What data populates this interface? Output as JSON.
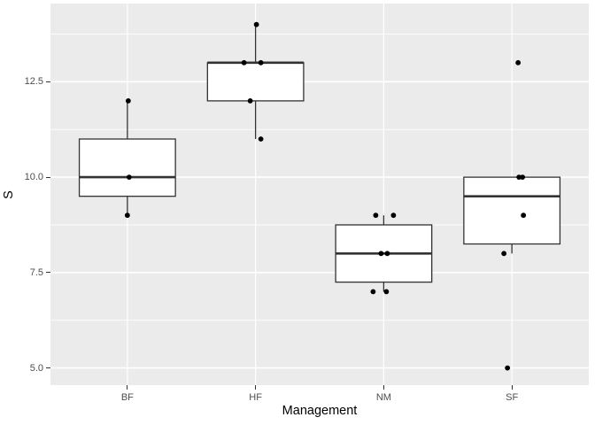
{
  "chart_data": {
    "type": "boxplot",
    "title": "",
    "xlabel": "Management",
    "ylabel": "S",
    "categories": [
      "BF",
      "HF",
      "NM",
      "SF"
    ],
    "ylim": [
      4.55,
      14.55
    ],
    "y_tick_values": [
      5.0,
      7.5,
      10.0,
      12.5
    ],
    "y_tick_labels": [
      "5.0",
      "7.5",
      "10.0",
      "12.5"
    ],
    "y_minor_gridlines": [
      6.25,
      8.75,
      11.25,
      13.75
    ],
    "grid": "major-and-minor-horizontal, major-vertical",
    "legend_position": "none",
    "groups": [
      {
        "label": "BF",
        "values": [
          9,
          10,
          12
        ],
        "q1": 9.5,
        "median": 10,
        "q3": 11,
        "whisker_low": 9,
        "whisker_high": 12,
        "outliers": [],
        "points": [
          {
            "v": 12,
            "dx": 1
          },
          {
            "v": 10,
            "dx": 2
          },
          {
            "v": 9,
            "dx": 0
          }
        ]
      },
      {
        "label": "HF",
        "values": [
          11,
          12,
          13,
          13,
          14
        ],
        "q1": 12,
        "median": 13,
        "q3": 13,
        "whisker_low": 11,
        "whisker_high": 14,
        "outliers": [],
        "points": [
          {
            "v": 14,
            "dx": 1
          },
          {
            "v": 13,
            "dx": -13
          },
          {
            "v": 13,
            "dx": 6
          },
          {
            "v": 12,
            "dx": -6
          },
          {
            "v": 11,
            "dx": 6
          }
        ]
      },
      {
        "label": "NM",
        "values": [
          7,
          7,
          8,
          8,
          9,
          9
        ],
        "q1": 7.25,
        "median": 8,
        "q3": 8.75,
        "whisker_low": 7,
        "whisker_high": 9,
        "outliers": [],
        "points": [
          {
            "v": 9,
            "dx": -9
          },
          {
            "v": 9,
            "dx": 11
          },
          {
            "v": 8,
            "dx": -3
          },
          {
            "v": 8,
            "dx": 4
          },
          {
            "v": 7,
            "dx": -12
          },
          {
            "v": 7,
            "dx": 3
          }
        ]
      },
      {
        "label": "SF",
        "values": [
          5,
          8,
          9,
          10,
          10,
          13
        ],
        "q1": 8.25,
        "median": 9.5,
        "q3": 10,
        "whisker_low": 8,
        "whisker_high": 10,
        "outliers": [
          13,
          5
        ],
        "points": [
          {
            "v": 13,
            "dx": 7
          },
          {
            "v": 10,
            "dx": 8
          },
          {
            "v": 10,
            "dx": 12
          },
          {
            "v": 9,
            "dx": 13
          },
          {
            "v": 8,
            "dx": -9
          },
          {
            "v": 5,
            "dx": -5
          }
        ]
      }
    ],
    "colors": {
      "background": "#ffffff",
      "panel_bg": "#ebebeb",
      "grid_major": "#ffffff",
      "grid_minor": "#ffffff",
      "box_stroke": "#333333",
      "box_fill": "#ffffff",
      "median_stroke": "#333333",
      "point_fill": "#000000",
      "axis_text": "#4d4d4d",
      "axis_title": "#000000",
      "tick_mark": "#333333"
    }
  }
}
